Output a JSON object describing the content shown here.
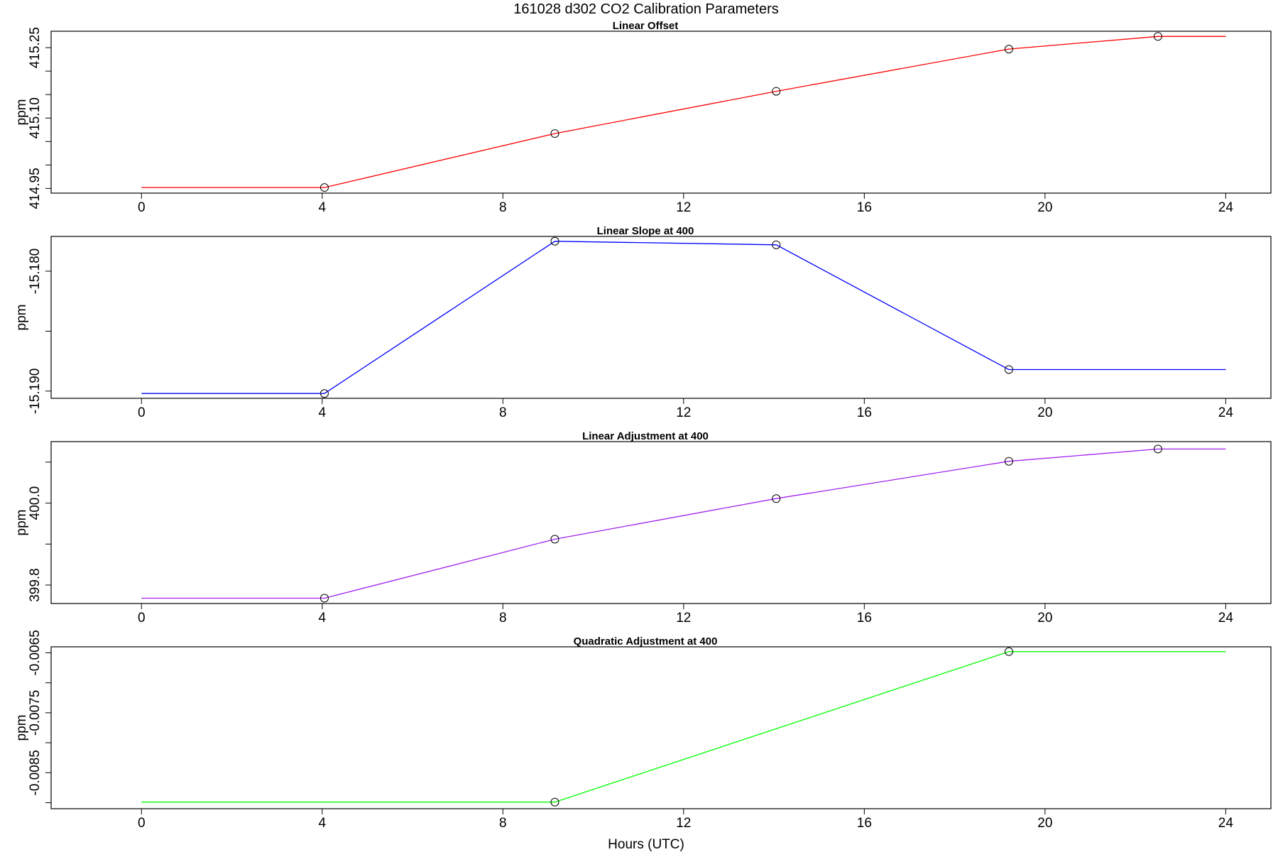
{
  "figure": {
    "title": "161028   d302   CO2 Calibration Parameters",
    "xlabel": "Hours (UTC)"
  },
  "chart_data": [
    {
      "type": "line",
      "title": "Linear Offset",
      "xlabel": "",
      "ylabel": "ppm",
      "xlim": [
        -2,
        25
      ],
      "ylim": [
        414.94,
        415.285
      ],
      "xticks": [
        0,
        4,
        8,
        12,
        16,
        20,
        24
      ],
      "xtick_labels": [
        "0",
        "4",
        "8",
        "12",
        "16",
        "20",
        "24"
      ],
      "yticks_minor": [
        414.95,
        415.0,
        415.05,
        415.1,
        415.15,
        415.2,
        415.25
      ],
      "yticks_labeled": [
        414.95,
        415.1,
        415.25
      ],
      "ytick_labels": [
        "414.95",
        "415.10",
        "415.25"
      ],
      "grid": false,
      "series": [
        {
          "color": "#ff0000",
          "line_x": [
            0,
            4.05,
            9.15,
            14.05,
            19.2,
            22.5,
            24
          ],
          "line_y": [
            414.952,
            414.952,
            415.067,
            415.157,
            415.247,
            415.274,
            415.274
          ],
          "points_x": [
            4.05,
            9.15,
            14.05,
            19.2,
            22.5
          ],
          "points_y": [
            414.952,
            415.067,
            415.157,
            415.247,
            415.274
          ]
        }
      ]
    },
    {
      "type": "line",
      "title": "Linear Slope at 400",
      "xlabel": "",
      "ylabel": "ppm",
      "xlim": [
        -2,
        25
      ],
      "ylim": [
        -15.1906,
        -15.1771
      ],
      "xticks": [
        0,
        4,
        8,
        12,
        16,
        20,
        24
      ],
      "xtick_labels": [
        "0",
        "4",
        "8",
        "12",
        "16",
        "20",
        "24"
      ],
      "yticks_minor": [
        -15.19,
        -15.185,
        -15.18
      ],
      "yticks_labeled": [
        -15.19,
        -15.18
      ],
      "ytick_labels": [
        "-15.190",
        "-15.180"
      ],
      "grid": false,
      "series": [
        {
          "color": "#0000ff",
          "line_x": [
            0,
            4.05,
            9.15,
            14.05,
            19.2,
            24
          ],
          "line_y": [
            -15.1902,
            -15.1902,
            -15.1775,
            -15.1778,
            -15.1882,
            -15.1882
          ],
          "points_x": [
            4.05,
            9.15,
            14.05,
            19.2
          ],
          "points_y": [
            -15.1902,
            -15.1775,
            -15.1778,
            -15.1882
          ]
        }
      ]
    },
    {
      "type": "line",
      "title": "Linear Adjustment at 400",
      "xlabel": "",
      "ylabel": "ppm",
      "xlim": [
        -2,
        25
      ],
      "ylim": [
        399.755,
        400.15
      ],
      "xticks": [
        0,
        4,
        8,
        12,
        16,
        20,
        24
      ],
      "xtick_labels": [
        "0",
        "4",
        "8",
        "12",
        "16",
        "20",
        "24"
      ],
      "yticks_minor": [
        399.8,
        399.9,
        400.0,
        400.1
      ],
      "yticks_labeled": [
        399.8,
        400.0
      ],
      "ytick_labels": [
        "399.8",
        "400.0"
      ],
      "grid": false,
      "series": [
        {
          "color": "#a020f0",
          "line_x": [
            0,
            4.05,
            9.15,
            14.05,
            19.2,
            22.5,
            24
          ],
          "line_y": [
            399.768,
            399.768,
            399.912,
            400.011,
            400.102,
            400.132,
            400.132
          ],
          "points_x": [
            4.05,
            9.15,
            14.05,
            19.2,
            22.5
          ],
          "points_y": [
            399.768,
            399.912,
            400.011,
            400.102,
            400.132
          ]
        }
      ]
    },
    {
      "type": "line",
      "title": "Quadratic Adjustment at 400",
      "xlabel": "Hours (UTC)",
      "ylabel": "ppm",
      "xlim": [
        -2,
        25
      ],
      "ylim": [
        -0.0091,
        -0.0064
      ],
      "xticks": [
        0,
        4,
        8,
        12,
        16,
        20,
        24
      ],
      "xtick_labels": [
        "0",
        "4",
        "8",
        "12",
        "16",
        "20",
        "24"
      ],
      "yticks_minor": [
        -0.009,
        -0.0085,
        -0.008,
        -0.0075,
        -0.007,
        -0.0065
      ],
      "yticks_labeled": [
        -0.0085,
        -0.0075,
        -0.0065
      ],
      "ytick_labels": [
        "-0.0085",
        "-0.0075",
        "-0.0065"
      ],
      "grid": false,
      "series": [
        {
          "color": "#00ff00",
          "line_x": [
            0,
            9.15,
            19.2,
            24
          ],
          "line_y": [
            -0.00899,
            -0.00899,
            -0.00648,
            -0.00648
          ],
          "points_x": [
            9.15,
            19.2
          ],
          "points_y": [
            -0.00899,
            -0.00648
          ]
        }
      ]
    }
  ]
}
